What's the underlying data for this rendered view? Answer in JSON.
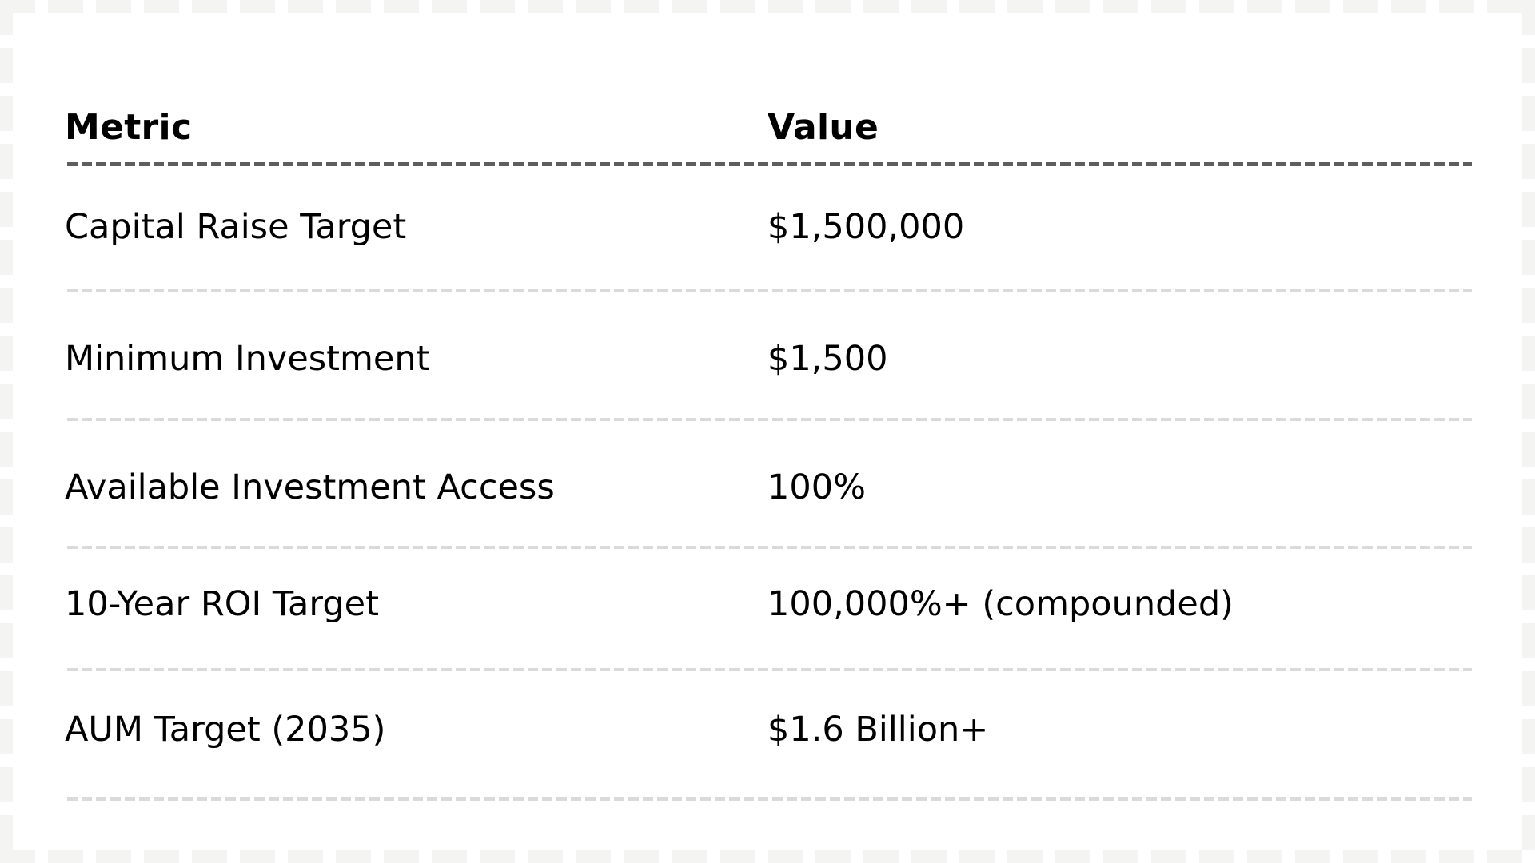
{
  "table": {
    "headers": {
      "metric": "Metric",
      "value": "Value"
    },
    "rows": [
      {
        "metric": "Capital Raise Target",
        "value": "$1,500,000"
      },
      {
        "metric": "Minimum Investment",
        "value": "$1,500"
      },
      {
        "metric": "Available Investment Access",
        "value": "100%"
      },
      {
        "metric": "10-Year ROI Target",
        "value": "100,000%+ (compounded)"
      },
      {
        "metric": "AUM Target (2035)",
        "value": "$1.6 Billion+"
      }
    ]
  },
  "colors": {
    "background": "#ffffff",
    "text": "#000000",
    "header_rule": "#5e5e5e",
    "row_rule": "#dadada",
    "frame": "#f4f4f2"
  }
}
